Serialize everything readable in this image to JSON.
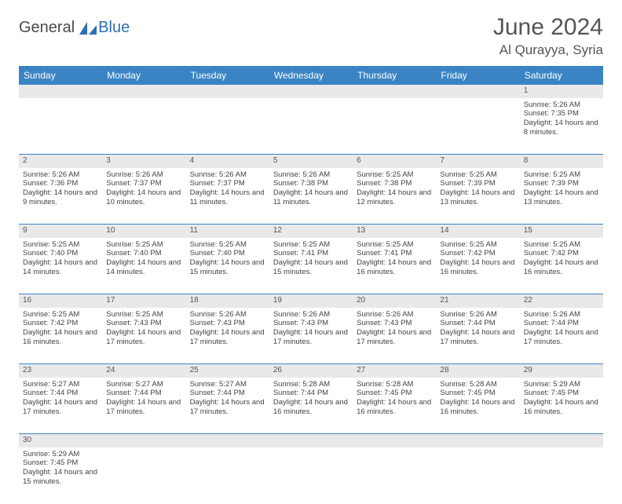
{
  "brand": {
    "general": "General",
    "blue": "Blue"
  },
  "title": "June 2024",
  "location": "Al Qurayya, Syria",
  "header_color": "#3a84c4",
  "daynum_bg": "#e9e9e9",
  "border_color": "#3a84c4",
  "days": [
    "Sunday",
    "Monday",
    "Tuesday",
    "Wednesday",
    "Thursday",
    "Friday",
    "Saturday"
  ],
  "weeks": [
    [
      null,
      null,
      null,
      null,
      null,
      null,
      {
        "n": "1",
        "sr": "5:26 AM",
        "ss": "7:35 PM",
        "dl": "14 hours and 8 minutes."
      }
    ],
    [
      {
        "n": "2",
        "sr": "5:26 AM",
        "ss": "7:36 PM",
        "dl": "14 hours and 9 minutes."
      },
      {
        "n": "3",
        "sr": "5:26 AM",
        "ss": "7:37 PM",
        "dl": "14 hours and 10 minutes."
      },
      {
        "n": "4",
        "sr": "5:26 AM",
        "ss": "7:37 PM",
        "dl": "14 hours and 11 minutes."
      },
      {
        "n": "5",
        "sr": "5:26 AM",
        "ss": "7:38 PM",
        "dl": "14 hours and 11 minutes."
      },
      {
        "n": "6",
        "sr": "5:25 AM",
        "ss": "7:38 PM",
        "dl": "14 hours and 12 minutes."
      },
      {
        "n": "7",
        "sr": "5:25 AM",
        "ss": "7:39 PM",
        "dl": "14 hours and 13 minutes."
      },
      {
        "n": "8",
        "sr": "5:25 AM",
        "ss": "7:39 PM",
        "dl": "14 hours and 13 minutes."
      }
    ],
    [
      {
        "n": "9",
        "sr": "5:25 AM",
        "ss": "7:40 PM",
        "dl": "14 hours and 14 minutes."
      },
      {
        "n": "10",
        "sr": "5:25 AM",
        "ss": "7:40 PM",
        "dl": "14 hours and 14 minutes."
      },
      {
        "n": "11",
        "sr": "5:25 AM",
        "ss": "7:40 PM",
        "dl": "14 hours and 15 minutes."
      },
      {
        "n": "12",
        "sr": "5:25 AM",
        "ss": "7:41 PM",
        "dl": "14 hours and 15 minutes."
      },
      {
        "n": "13",
        "sr": "5:25 AM",
        "ss": "7:41 PM",
        "dl": "14 hours and 16 minutes."
      },
      {
        "n": "14",
        "sr": "5:25 AM",
        "ss": "7:42 PM",
        "dl": "14 hours and 16 minutes."
      },
      {
        "n": "15",
        "sr": "5:25 AM",
        "ss": "7:42 PM",
        "dl": "14 hours and 16 minutes."
      }
    ],
    [
      {
        "n": "16",
        "sr": "5:25 AM",
        "ss": "7:42 PM",
        "dl": "14 hours and 16 minutes."
      },
      {
        "n": "17",
        "sr": "5:25 AM",
        "ss": "7:43 PM",
        "dl": "14 hours and 17 minutes."
      },
      {
        "n": "18",
        "sr": "5:26 AM",
        "ss": "7:43 PM",
        "dl": "14 hours and 17 minutes."
      },
      {
        "n": "19",
        "sr": "5:26 AM",
        "ss": "7:43 PM",
        "dl": "14 hours and 17 minutes."
      },
      {
        "n": "20",
        "sr": "5:26 AM",
        "ss": "7:43 PM",
        "dl": "14 hours and 17 minutes."
      },
      {
        "n": "21",
        "sr": "5:26 AM",
        "ss": "7:44 PM",
        "dl": "14 hours and 17 minutes."
      },
      {
        "n": "22",
        "sr": "5:26 AM",
        "ss": "7:44 PM",
        "dl": "14 hours and 17 minutes."
      }
    ],
    [
      {
        "n": "23",
        "sr": "5:27 AM",
        "ss": "7:44 PM",
        "dl": "14 hours and 17 minutes."
      },
      {
        "n": "24",
        "sr": "5:27 AM",
        "ss": "7:44 PM",
        "dl": "14 hours and 17 minutes."
      },
      {
        "n": "25",
        "sr": "5:27 AM",
        "ss": "7:44 PM",
        "dl": "14 hours and 17 minutes."
      },
      {
        "n": "26",
        "sr": "5:28 AM",
        "ss": "7:44 PM",
        "dl": "14 hours and 16 minutes."
      },
      {
        "n": "27",
        "sr": "5:28 AM",
        "ss": "7:45 PM",
        "dl": "14 hours and 16 minutes."
      },
      {
        "n": "28",
        "sr": "5:28 AM",
        "ss": "7:45 PM",
        "dl": "14 hours and 16 minutes."
      },
      {
        "n": "29",
        "sr": "5:29 AM",
        "ss": "7:45 PM",
        "dl": "14 hours and 16 minutes."
      }
    ],
    [
      {
        "n": "30",
        "sr": "5:29 AM",
        "ss": "7:45 PM",
        "dl": "14 hours and 15 minutes."
      },
      null,
      null,
      null,
      null,
      null,
      null
    ]
  ],
  "labels": {
    "sunrise": "Sunrise:",
    "sunset": "Sunset:",
    "daylight": "Daylight:"
  }
}
